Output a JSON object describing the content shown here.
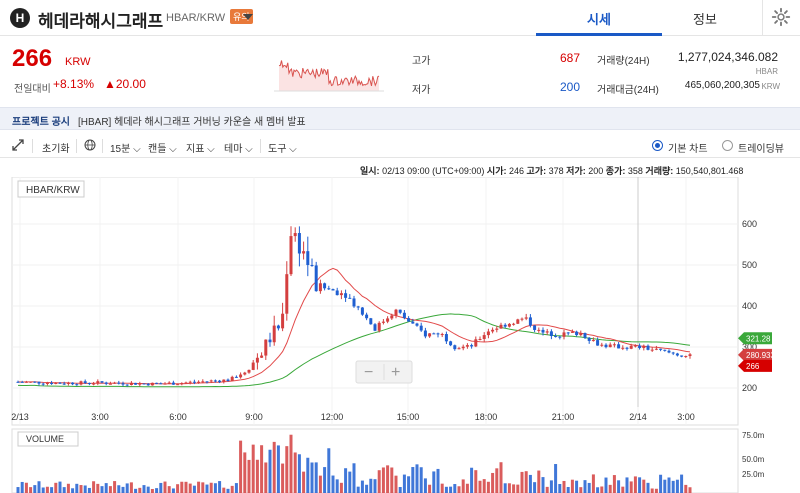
{
  "header": {
    "logo_text": "H",
    "coin_name": "헤데라해시그래프",
    "pair": "HBAR/KRW",
    "badge": "유의",
    "tabs": [
      {
        "label": "시세",
        "active": true
      },
      {
        "label": "정보",
        "active": false
      }
    ],
    "settings_icon": "gear-icon"
  },
  "price": {
    "current": "266",
    "unit": "KRW",
    "change_label": "전일대비",
    "change_pct": "+8.13%",
    "change_val": "▲20.00"
  },
  "stats": {
    "high_label": "고가",
    "high": "687",
    "low_label": "저가",
    "low": "200",
    "vol_label": "거래량(24H)",
    "vol": "1,277,024,346.082",
    "vol_unit": "HBAR",
    "amount_label": "거래대금(24H)",
    "amount": "465,060,200,305",
    "amount_unit": "KRW"
  },
  "notice": {
    "title": "프로젝트 공시",
    "text": "[HBAR] 헤데라 해시그래프 거버닝 카운슬 새 멤버 발표"
  },
  "toolbar": {
    "reset": "초기화",
    "interval": "15분",
    "candle": "캔들",
    "indicator": "지표",
    "theme": "테마",
    "tools": "도구",
    "basic_chart": "기본 차트",
    "trading_view": "트레이딩뷰"
  },
  "infobar": {
    "time_label": "일시:",
    "time": "02/13 09:00 (UTC+09:00)",
    "open_label": "시가:",
    "open": "246",
    "high_label": "고가:",
    "high": "378",
    "low_label": "저가:",
    "low": "200",
    "close_label": "종가:",
    "close": "358",
    "vol_label": "거래량:",
    "vol": "150,540,801.468"
  },
  "chart_data": {
    "type": "candlestick",
    "symbol_label": "HBAR/KRW",
    "volume_label": "VOLUME",
    "x_ticks": [
      "2/13",
      "3:00",
      "6:00",
      "9:00",
      "12:00",
      "15:00",
      "18:00",
      "21:00",
      "2/14",
      "3:00"
    ],
    "y_ticks": [
      200,
      300,
      400,
      500,
      600
    ],
    "vol_ticks": [
      "75.0m",
      "50.0m",
      "25.0m"
    ],
    "price_tags": [
      {
        "label": "321.28",
        "value": 321.28,
        "color": "#3aa83a"
      },
      {
        "label": "280.933",
        "value": 280.933,
        "color": "#d43f3f"
      },
      {
        "label": "266",
        "value": 266,
        "color": "#d60000"
      }
    ],
    "zoom_out": "−",
    "zoom_in": "+",
    "colors": {
      "up": "#d43f3f",
      "down": "#1f5fd1",
      "ma_short": "#e24a4a",
      "ma_long": "#3aa83a"
    }
  }
}
